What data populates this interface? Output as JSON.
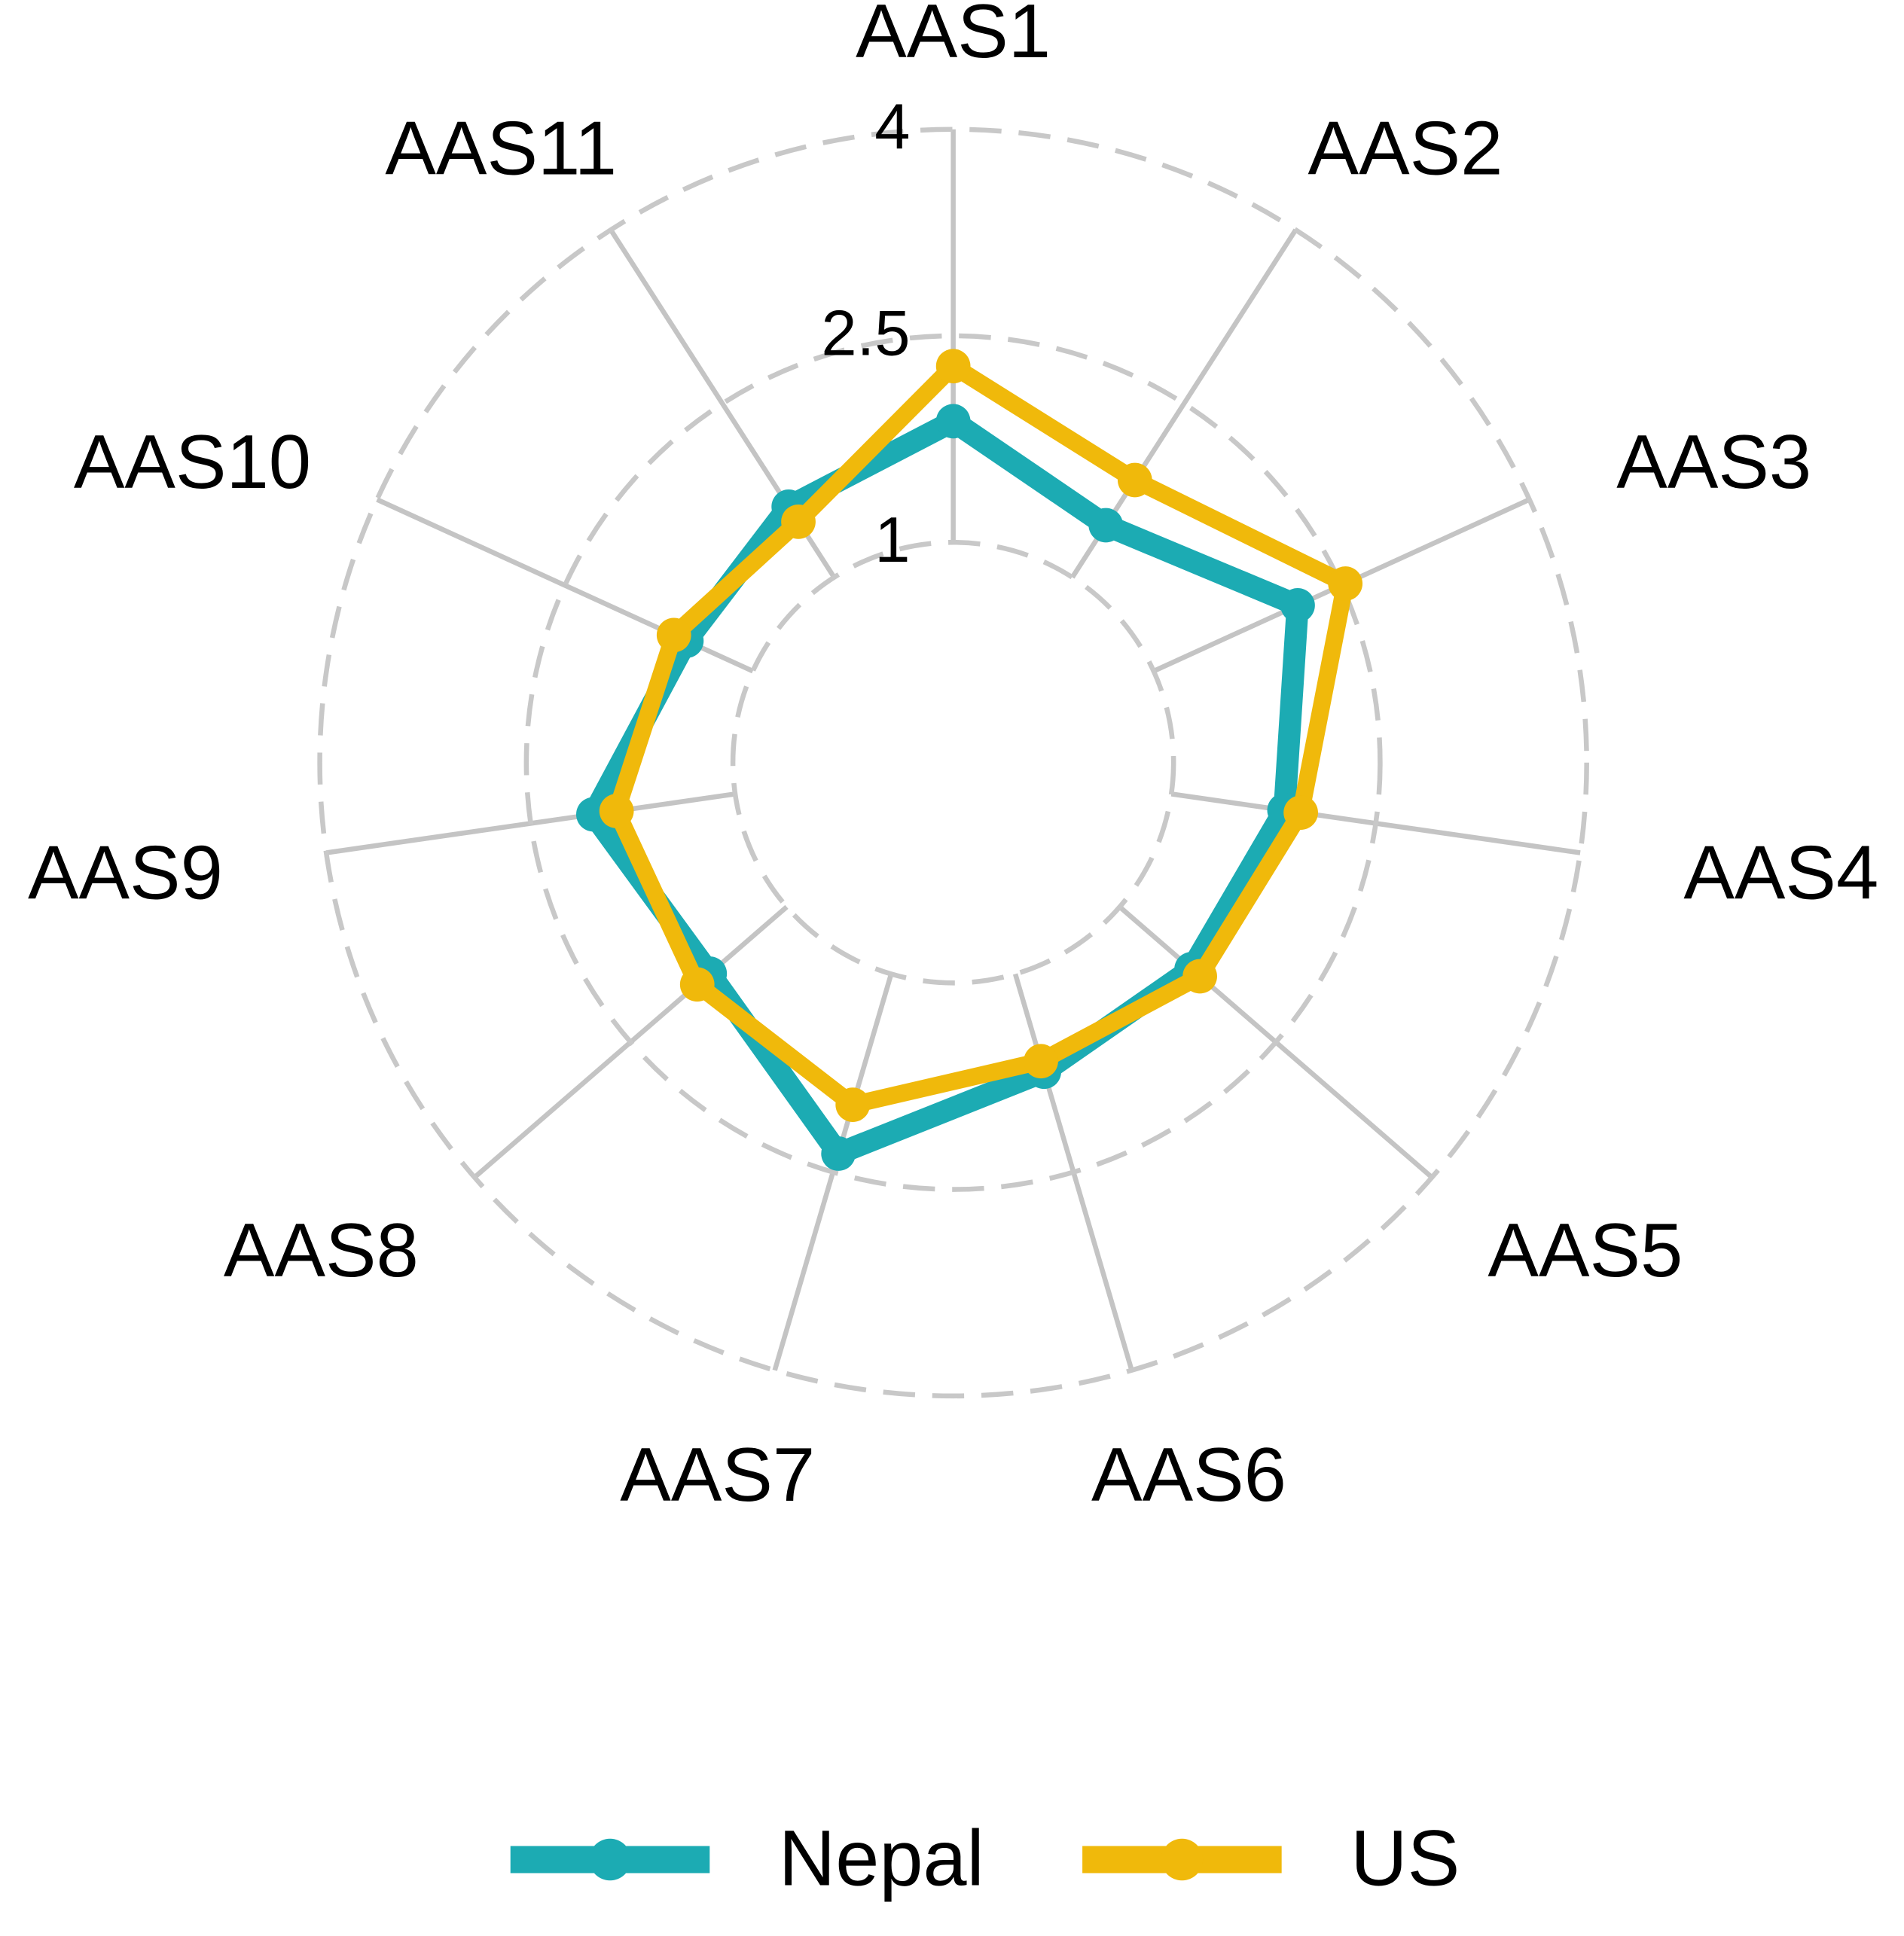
{
  "chart_data": {
    "type": "radar",
    "categories": [
      "AAS1",
      "AAS2",
      "AAS3",
      "AAS4",
      "AAS5",
      "AAS6",
      "AAS7",
      "AAS8",
      "AAS9",
      "AAS10",
      "AAS11"
    ],
    "series": [
      {
        "name": "Nepal",
        "color": "#1cabb3",
        "values": [
          1.88,
          1.45,
          2.15,
          1.83,
          1.69,
          1.74,
          2.36,
          1.74,
          2.04,
          1.53,
          1.61
        ]
      },
      {
        "name": "US",
        "color": "#f0b90b",
        "values": [
          2.28,
          1.84,
          2.53,
          1.95,
          1.77,
          1.66,
          1.99,
          1.86,
          1.87,
          1.63,
          1.48
        ]
      }
    ],
    "ylim": [
      -0.6,
      4
    ],
    "yticks": [
      1,
      2.5,
      4
    ],
    "grid": true,
    "legend": "bottom"
  }
}
